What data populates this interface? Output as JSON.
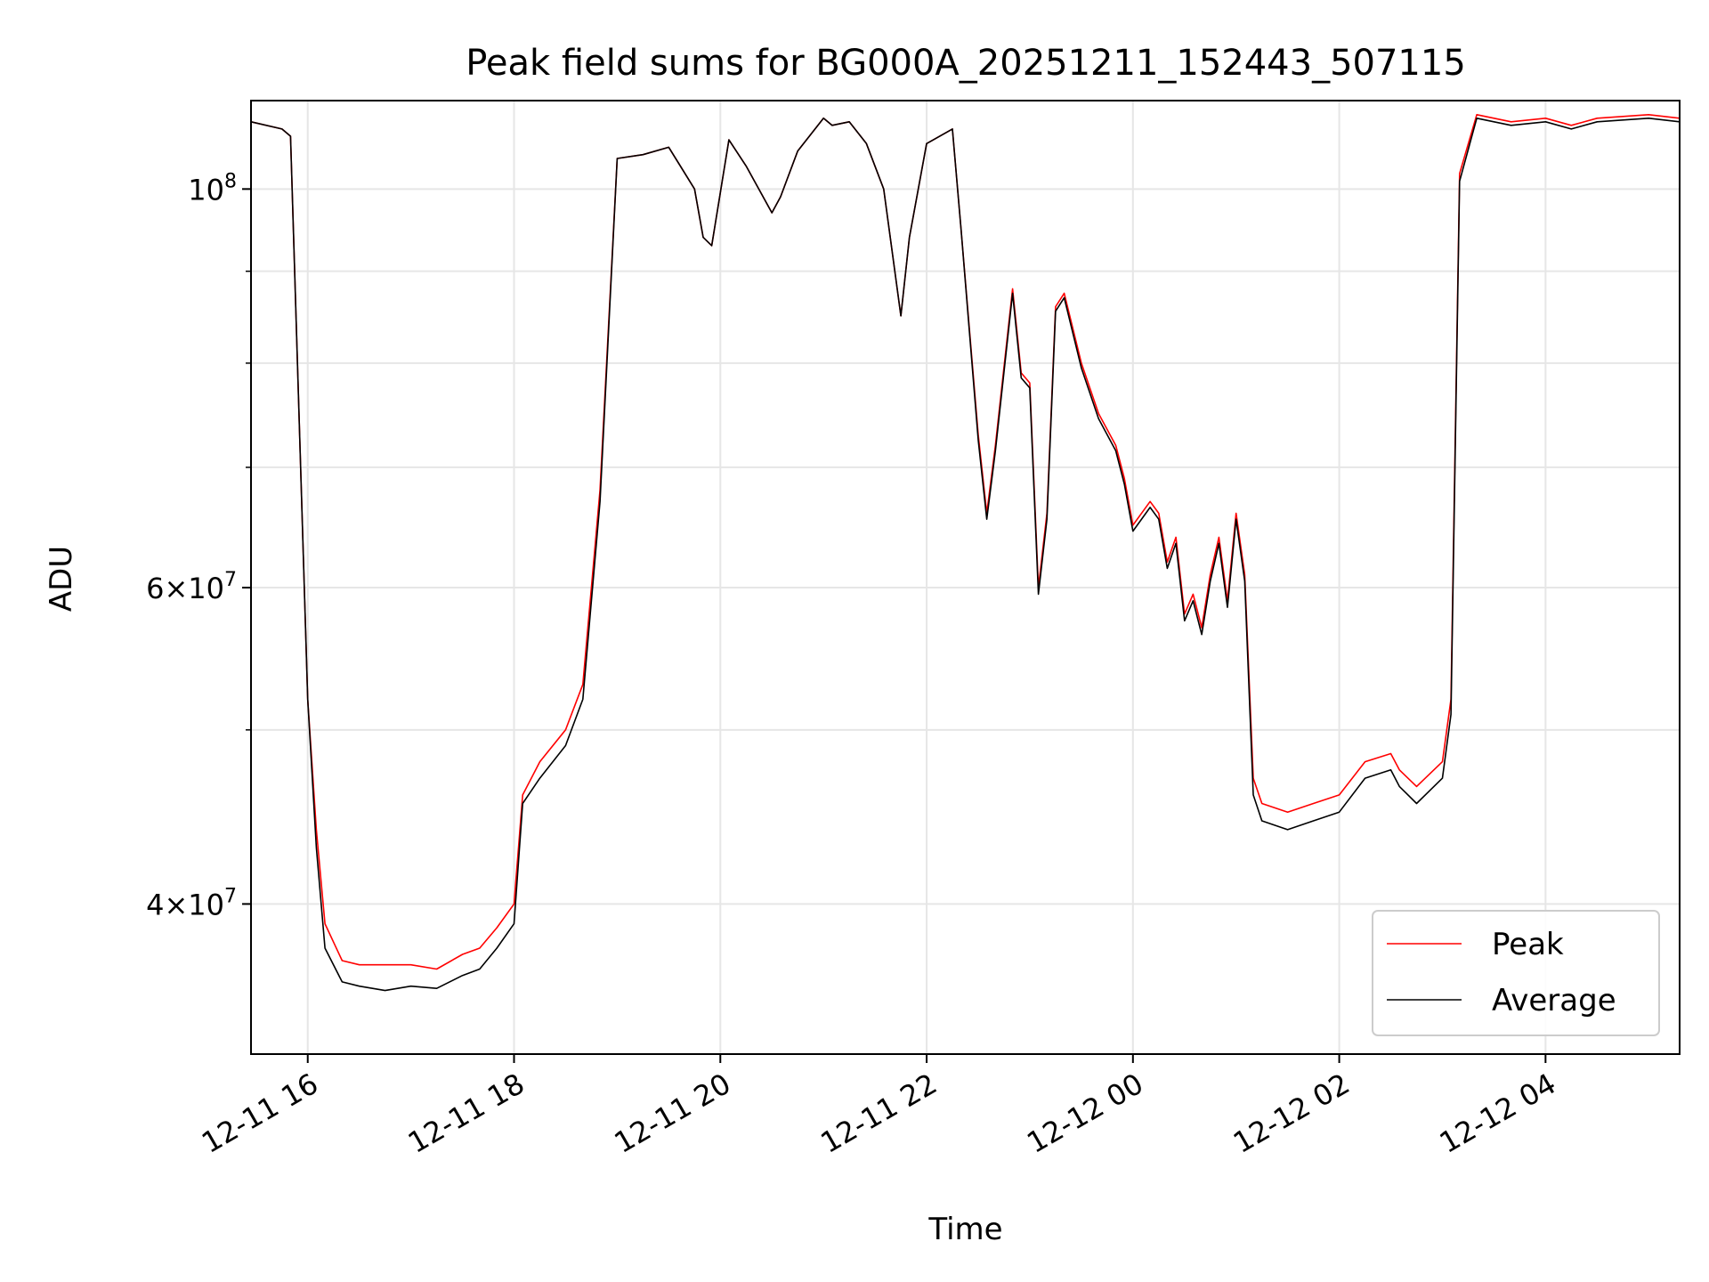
{
  "chart_data": {
    "type": "line",
    "title": "Peak field sums for BG000A_20251211_152443_507115",
    "xlabel": "Time",
    "ylabel": "ADU",
    "y_scale": "log",
    "ylim": [
      33000000,
      112000000
    ],
    "xlim": [
      "2025-12-11 15:27",
      "2025-12-12 05:18"
    ],
    "x_ticks": [
      "2025-12-11 16:00",
      "2025-12-11 18:00",
      "2025-12-11 20:00",
      "2025-12-11 22:00",
      "2025-12-12 00:00",
      "2025-12-12 02:00",
      "2025-12-12 04:00"
    ],
    "x_tick_labels": [
      "12-11 16",
      "12-11 18",
      "12-11 20",
      "12-11 22",
      "12-12 00",
      "12-12 02",
      "12-12 04"
    ],
    "y_ticks": [
      {
        "value": 100000000,
        "mantissa": "",
        "exp": "8"
      },
      {
        "value": 60000000,
        "mantissa": "6×",
        "exp": "7"
      },
      {
        "value": 40000000,
        "mantissa": "4×",
        "exp": "7"
      }
    ],
    "y_minor_ticks": [
      50000000,
      70000000,
      80000000,
      90000000
    ],
    "grid": true,
    "legend_position": "bottom-right",
    "x": [
      "2025-12-11 15:27",
      "2025-12-11 15:45",
      "2025-12-11 15:50",
      "2025-12-11 16:00",
      "2025-12-11 16:05",
      "2025-12-11 16:10",
      "2025-12-11 16:20",
      "2025-12-11 16:30",
      "2025-12-11 16:45",
      "2025-12-11 17:00",
      "2025-12-11 17:15",
      "2025-12-11 17:30",
      "2025-12-11 17:40",
      "2025-12-11 17:50",
      "2025-12-11 18:00",
      "2025-12-11 18:05",
      "2025-12-11 18:15",
      "2025-12-11 18:30",
      "2025-12-11 18:40",
      "2025-12-11 18:50",
      "2025-12-11 19:00",
      "2025-12-11 19:15",
      "2025-12-11 19:30",
      "2025-12-11 19:45",
      "2025-12-11 19:50",
      "2025-12-11 19:55",
      "2025-12-11 20:05",
      "2025-12-11 20:15",
      "2025-12-11 20:30",
      "2025-12-11 20:35",
      "2025-12-11 20:45",
      "2025-12-11 21:00",
      "2025-12-11 21:05",
      "2025-12-11 21:15",
      "2025-12-11 21:25",
      "2025-12-11 21:35",
      "2025-12-11 21:45",
      "2025-12-11 21:50",
      "2025-12-11 22:00",
      "2025-12-11 22:15",
      "2025-12-11 22:20",
      "2025-12-11 22:30",
      "2025-12-11 22:35",
      "2025-12-11 22:40",
      "2025-12-11 22:50",
      "2025-12-11 22:55",
      "2025-12-11 23:00",
      "2025-12-11 23:05",
      "2025-12-11 23:10",
      "2025-12-11 23:15",
      "2025-12-11 23:20",
      "2025-12-11 23:30",
      "2025-12-11 23:40",
      "2025-12-11 23:50",
      "2025-12-11 23:55",
      "2025-12-12 00:00",
      "2025-12-12 00:10",
      "2025-12-12 00:15",
      "2025-12-12 00:20",
      "2025-12-12 00:25",
      "2025-12-12 00:30",
      "2025-12-12 00:35",
      "2025-12-12 00:40",
      "2025-12-12 00:45",
      "2025-12-12 00:50",
      "2025-12-12 00:55",
      "2025-12-12 01:00",
      "2025-12-12 01:05",
      "2025-12-12 01:10",
      "2025-12-12 01:15",
      "2025-12-12 01:30",
      "2025-12-12 01:45",
      "2025-12-12 02:00",
      "2025-12-12 02:15",
      "2025-12-12 02:30",
      "2025-12-12 02:35",
      "2025-12-12 02:45",
      "2025-12-12 03:00",
      "2025-12-12 03:05",
      "2025-12-12 03:10",
      "2025-12-12 03:20",
      "2025-12-12 03:40",
      "2025-12-12 04:00",
      "2025-12-12 04:15",
      "2025-12-12 04:30",
      "2025-12-12 05:00",
      "2025-12-12 05:18"
    ],
    "series": [
      {
        "name": "Peak",
        "color": "#ff0000",
        "values": [
          109000000,
          108000000,
          107000000,
          52000000,
          44000000,
          39000000,
          37200000,
          37000000,
          37000000,
          37000000,
          36800000,
          37500000,
          37800000,
          38800000,
          40000000,
          46000000,
          48000000,
          50000000,
          53000000,
          68000000,
          104000000,
          104500000,
          105500000,
          100000000,
          94000000,
          93000000,
          106500000,
          103000000,
          97000000,
          99000000,
          105000000,
          109500000,
          108500000,
          109000000,
          106000000,
          100000000,
          85000000,
          94000000,
          106000000,
          108000000,
          95000000,
          73000000,
          66000000,
          72000000,
          88000000,
          79000000,
          78000000,
          60000000,
          66000000,
          86000000,
          87500000,
          80000000,
          75000000,
          72000000,
          69000000,
          65000000,
          67000000,
          66000000,
          62000000,
          64000000,
          58000000,
          59500000,
          57000000,
          61000000,
          64000000,
          59000000,
          66000000,
          61000000,
          47000000,
          45500000,
          45000000,
          45500000,
          46000000,
          48000000,
          48500000,
          47500000,
          46500000,
          48000000,
          52000000,
          102000000,
          110000000,
          109000000,
          109500000,
          108500000,
          109500000,
          110000000,
          109500000
        ]
      },
      {
        "name": "Average",
        "color": "#000000",
        "values": [
          109000000,
          108000000,
          107000000,
          52000000,
          43000000,
          37800000,
          36200000,
          36000000,
          35800000,
          36000000,
          35900000,
          36500000,
          36800000,
          37800000,
          39000000,
          45500000,
          47000000,
          49000000,
          52000000,
          67000000,
          104000000,
          104500000,
          105500000,
          100000000,
          94000000,
          93000000,
          106500000,
          103000000,
          97000000,
          99000000,
          105000000,
          109500000,
          108500000,
          109000000,
          106000000,
          100000000,
          85000000,
          94000000,
          106000000,
          108000000,
          95000000,
          72500000,
          65500000,
          71500000,
          87500000,
          78500000,
          77500000,
          59500000,
          65500000,
          85500000,
          87000000,
          79500000,
          74500000,
          71500000,
          68500000,
          64500000,
          66500000,
          65500000,
          61500000,
          63500000,
          57500000,
          59000000,
          56500000,
          60500000,
          63500000,
          58500000,
          65500000,
          60500000,
          46000000,
          44500000,
          44000000,
          44500000,
          45000000,
          47000000,
          47500000,
          46500000,
          45500000,
          47000000,
          51000000,
          101000000,
          109500000,
          108500000,
          109000000,
          108000000,
          109000000,
          109500000,
          109000000
        ]
      }
    ]
  }
}
